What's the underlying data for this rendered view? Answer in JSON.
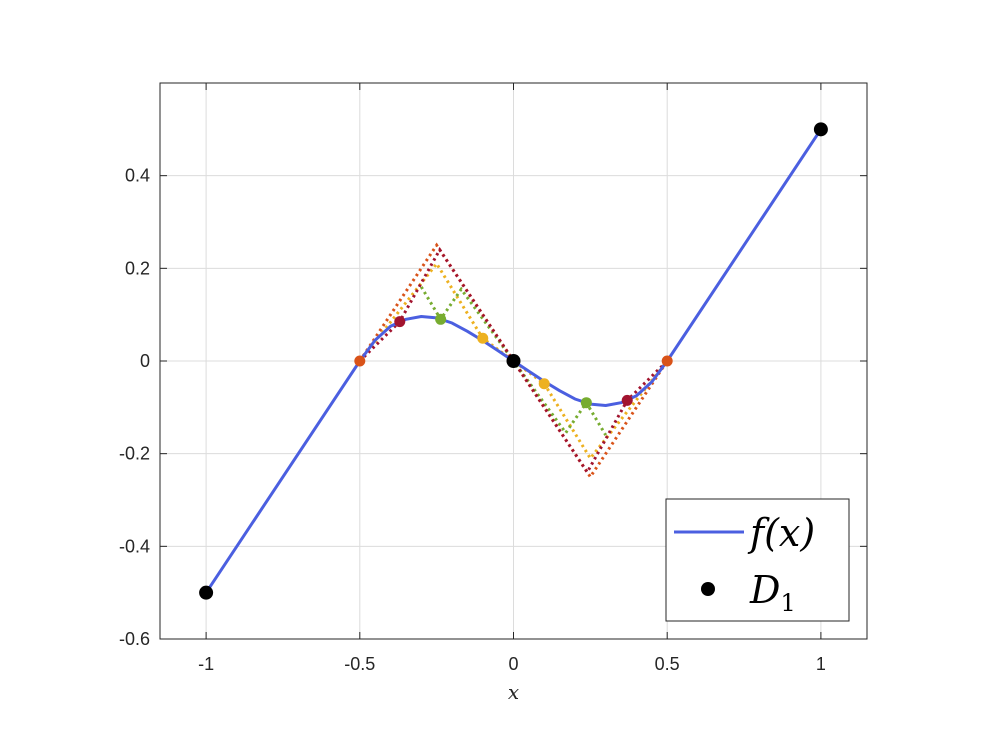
{
  "chart_data": {
    "type": "line",
    "title": "",
    "xlabel": "x",
    "ylabel": "",
    "xlim": [
      -1.15,
      1.15
    ],
    "ylim": [
      -0.6,
      0.6
    ],
    "grid": true,
    "legend_position": "bottom-right",
    "x_ticks": [
      -1,
      -0.5,
      0,
      0.5,
      1
    ],
    "x_tick_labels": [
      "-1",
      "-0.5",
      "0",
      "0.5",
      "1"
    ],
    "y_ticks": [
      -0.6,
      -0.4,
      -0.2,
      0,
      0.2,
      0.4
    ],
    "y_tick_labels": [
      "-0.6",
      "-0.4",
      "-0.2",
      "0",
      "0.2",
      "0.4"
    ],
    "legend": [
      {
        "label": "f(x)",
        "kind": "line",
        "color": "#4b5fe0"
      },
      {
        "label": "D",
        "subscript": "1",
        "kind": "marker",
        "color": "#000000"
      }
    ],
    "series": [
      {
        "name": "f(x)",
        "role": "main",
        "color": "#4b5fe0",
        "x": [
          -1,
          -0.5,
          -0.45,
          -0.4,
          -0.35,
          -0.3,
          -0.25,
          -0.2,
          -0.15,
          -0.1,
          -0.05,
          0,
          0.05,
          0.1,
          0.15,
          0.2,
          0.25,
          0.3,
          0.35,
          0.4,
          0.45,
          0.5,
          1
        ],
        "y": [
          -0.5,
          0,
          0.045,
          0.075,
          0.09,
          0.096,
          0.093,
          0.082,
          0.064,
          0.044,
          0.022,
          0,
          -0.022,
          -0.044,
          -0.064,
          -0.082,
          -0.093,
          -0.096,
          -0.09,
          -0.075,
          -0.045,
          0,
          0.5
        ]
      },
      {
        "role": "approx",
        "color": "#d95319",
        "x": [
          -0.5,
          -0.25,
          0,
          0.25,
          0.5
        ],
        "y": [
          0,
          0.25,
          0,
          -0.25,
          0
        ],
        "markers_x": [
          -0.5,
          0.5
        ],
        "markers_y": [
          0,
          0
        ]
      },
      {
        "role": "approx",
        "color": "#edb120",
        "x": [
          -0.5,
          -0.25,
          -0.1,
          0,
          0.1,
          0.25,
          0.5
        ],
        "y": [
          0,
          0.21,
          0.049,
          0,
          -0.049,
          -0.21,
          0
        ],
        "markers_x": [
          -0.1,
          0.1
        ],
        "markers_y": [
          0.049,
          -0.049
        ]
      },
      {
        "role": "approx",
        "color": "#77ac30",
        "x": [
          -0.3,
          -0.237,
          -0.17,
          0.17,
          0.237,
          0.3
        ],
        "y": [
          0.16,
          0.09,
          0.155,
          -0.155,
          -0.09,
          -0.16
        ],
        "markers_x": [
          -0.237,
          0.237
        ],
        "markers_y": [
          0.09,
          -0.09
        ]
      },
      {
        "role": "approx",
        "color": "#a2142f",
        "x": [
          -0.5,
          -0.37,
          -0.24,
          0,
          0.24,
          0.37,
          0.5
        ],
        "y": [
          0,
          0.085,
          0.24,
          0,
          -0.24,
          -0.085,
          0
        ],
        "markers_x": [
          -0.37,
          0.37
        ],
        "markers_y": [
          0.085,
          -0.085
        ]
      },
      {
        "name": "D1",
        "role": "points",
        "color": "#000000",
        "x": [
          -1,
          0,
          1
        ],
        "y": [
          -0.5,
          0,
          0.5
        ]
      }
    ]
  }
}
